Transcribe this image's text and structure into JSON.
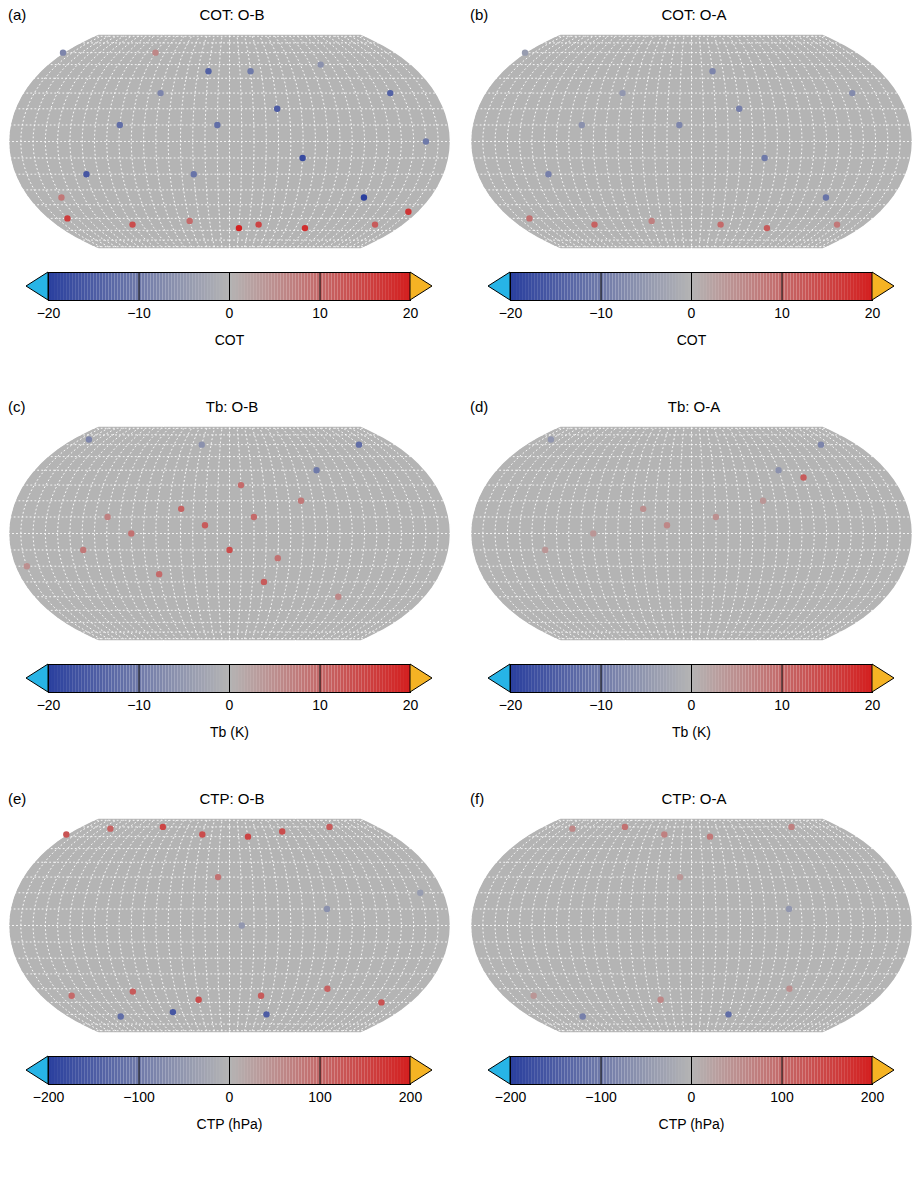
{
  "chart_data": [
    {
      "type": "map",
      "panel": "(a)",
      "title": "COT: O-B",
      "colorbar": {
        "label": "COT",
        "range": [
          -20,
          20
        ],
        "ticks": [
          -20,
          -10,
          0,
          10,
          20
        ]
      },
      "points": {
        "lon": [
          -150,
          -100,
          -30,
          20,
          80,
          140,
          -170,
          170,
          -140,
          -120,
          -40,
          -20,
          60,
          90,
          120,
          160,
          -160,
          -60,
          0,
          100,
          -90,
          30,
          -10,
          150
        ],
        "lat": [
          -55,
          -58,
          -55,
          -50,
          -55,
          -52,
          -58,
          10,
          20,
          -10,
          30,
          0,
          -20,
          10,
          30,
          45,
          45,
          -35,
          60,
          60,
          50,
          -35,
          -45,
          -20
        ],
        "values": [
          15,
          18,
          12,
          16,
          14,
          10,
          20,
          -12,
          -15,
          -18,
          -14,
          -10,
          -16,
          -12,
          -8,
          -14,
          -10,
          -20,
          -8,
          6,
          -6,
          8,
          17,
          -11
        ]
      }
    },
    {
      "type": "map",
      "panel": "(b)",
      "title": "COT: O-A",
      "colorbar": {
        "label": "COT",
        "range": [
          -20,
          20
        ],
        "ticks": [
          -20,
          -10,
          0,
          10,
          20
        ]
      },
      "points": {
        "lon": [
          -150,
          -100,
          -30,
          20,
          80,
          140,
          170,
          -140,
          -120,
          -40,
          60,
          90,
          120,
          -160,
          0,
          -60
        ],
        "lat": [
          -55,
          -58,
          -55,
          -50,
          -55,
          -52,
          10,
          20,
          -10,
          30,
          -20,
          10,
          30,
          45,
          60,
          -35
        ],
        "values": [
          10,
          12,
          8,
          9,
          11,
          7,
          -8,
          -9,
          -10,
          -7,
          -9,
          -6,
          -5,
          -8,
          -4,
          -11
        ]
      }
    },
    {
      "type": "map",
      "panel": "(c)",
      "title": "Tb: O-B",
      "colorbar": {
        "label": "Tb (K)",
        "range": [
          -20,
          20
        ],
        "ticks": [
          -20,
          -10,
          0,
          10,
          20
        ]
      },
      "points": {
        "lon": [
          160,
          180,
          -160,
          -140,
          -120,
          140,
          120,
          100,
          80,
          -170,
          -150,
          60,
          -100,
          -40,
          20,
          150,
          -80,
          10
        ],
        "lat": [
          5,
          -10,
          10,
          -15,
          20,
          15,
          -25,
          0,
          10,
          30,
          -30,
          -10,
          40,
          60,
          65,
          60,
          -40,
          -20
        ],
        "values": [
          12,
          14,
          10,
          9,
          8,
          11,
          10,
          9,
          7,
          10,
          12,
          8,
          -10,
          -12,
          -8,
          -6,
          6,
          5
        ]
      }
    },
    {
      "type": "map",
      "panel": "(d)",
      "title": "Tb: O-A",
      "colorbar": {
        "label": "Tb (K)",
        "range": [
          -20,
          20
        ],
        "ticks": [
          -20,
          -10,
          0,
          10,
          20
        ]
      },
      "points": {
        "lon": [
          160,
          -160,
          140,
          100,
          -120,
          -100,
          -40,
          20,
          60,
          -80
        ],
        "lat": [
          5,
          10,
          15,
          0,
          20,
          40,
          60,
          65,
          -10,
          35
        ],
        "values": [
          6,
          5,
          5,
          4,
          4,
          -6,
          -8,
          -5,
          4,
          12
        ]
      }
    },
    {
      "type": "map",
      "panel": "(e)",
      "title": "CTP: O-B",
      "colorbar": {
        "label": "CTP (hPa)",
        "range": [
          -200,
          200
        ],
        "ticks": [
          -200,
          -100,
          0,
          100,
          200
        ]
      },
      "points": {
        "lon": [
          -160,
          -120,
          -60,
          0,
          40,
          100,
          150,
          -150,
          -90,
          -30,
          30,
          90,
          150,
          -140,
          60,
          120,
          -100,
          -20,
          170,
          -170
        ],
        "lat": [
          60,
          65,
          70,
          62,
          68,
          70,
          62,
          -45,
          -40,
          -50,
          -45,
          -42,
          -48,
          -60,
          -62,
          -58,
          10,
          20,
          30,
          0
        ],
        "values": [
          150,
          140,
          120,
          130,
          110,
          150,
          140,
          120,
          110,
          130,
          100,
          120,
          140,
          -150,
          -120,
          -160,
          -60,
          -40,
          90,
          -50
        ]
      }
    },
    {
      "type": "map",
      "panel": "(f)",
      "title": "CTP: O-A",
      "colorbar": {
        "label": "CTP (hPa)",
        "range": [
          -200,
          200
        ],
        "ticks": [
          -200,
          -100,
          0,
          100,
          200
        ]
      },
      "points": {
        "lon": [
          -160,
          -60,
          40,
          100,
          150,
          -90,
          30,
          150,
          -140,
          60,
          -100,
          170
        ],
        "lat": [
          60,
          70,
          68,
          70,
          62,
          -40,
          -45,
          -48,
          -60,
          -62,
          10,
          30
        ],
        "values": [
          80,
          70,
          60,
          90,
          70,
          50,
          40,
          60,
          -120,
          -90,
          -50,
          40
        ]
      }
    }
  ]
}
